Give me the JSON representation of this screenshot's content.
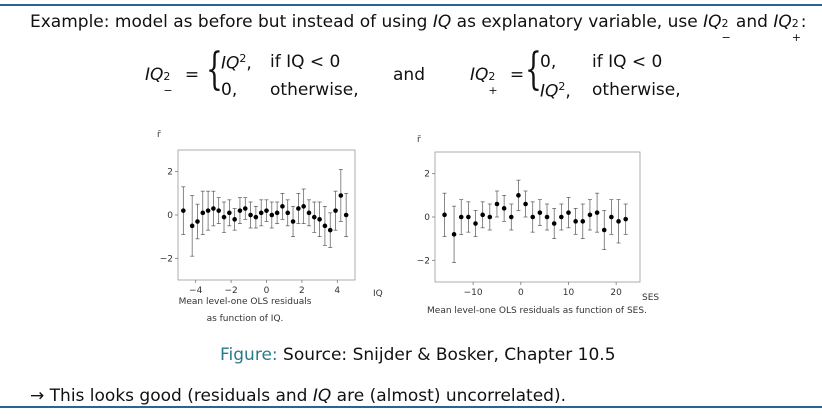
{
  "intro": {
    "prefix": "Example: model as before but instead of using ",
    "var": "IQ",
    "middle": " as explanatory variable, use ",
    "term1": "IQ",
    "sup1": "2",
    "sub1": "−",
    "and_word": " and ",
    "term2": "IQ",
    "sup2": "2",
    "sub2": "+",
    "suffix": ":"
  },
  "equation_left": {
    "lhs": "IQ",
    "lhs_sup": "2",
    "lhs_sub": "−",
    "equals": "=",
    "case1_value": "IQ",
    "case1_sup": "2",
    "case1_comma": ",",
    "case1_cond": "if IQ < 0",
    "case2_value": "0,",
    "case2_cond": "otherwise,"
  },
  "connector": "and",
  "equation_right": {
    "lhs": "IQ",
    "lhs_sup": "2",
    "lhs_sub": "+",
    "equals": "=",
    "case1_value": "0,",
    "case1_cond": "if IQ < 0",
    "case2_value": "IQ",
    "case2_sup": "2",
    "case2_comma": ",",
    "case2_cond": "otherwise,"
  },
  "figure_caption": {
    "label": "Figure:",
    "text": " Source: Snijder & Bosker, Chapter 10.5"
  },
  "conclusion": {
    "arrow": "→",
    "text_before": " This looks good (residuals and ",
    "var": "IQ",
    "text_after": " are (almost) uncorrelated)."
  },
  "chart_data": [
    {
      "type": "scatter",
      "title": "",
      "ylabel": "r̄",
      "xlabel": "IQ",
      "caption_line1": "Mean level-one OLS residuals",
      "caption_line2": "as function of IQ.",
      "xlim": [
        -5,
        5
      ],
      "ylim": [
        -3,
        3
      ],
      "xticks": [
        "−4",
        "−2",
        "0",
        "2",
        "4"
      ],
      "yticks": [
        "2",
        "0",
        "−2"
      ],
      "x": [
        -4.7,
        -4.2,
        -3.9,
        -3.6,
        -3.3,
        -3.0,
        -2.7,
        -2.4,
        -2.1,
        -1.8,
        -1.5,
        -1.2,
        -0.9,
        -0.6,
        -0.3,
        0.0,
        0.3,
        0.6,
        0.9,
        1.2,
        1.5,
        1.8,
        2.1,
        2.4,
        2.7,
        3.0,
        3.3,
        3.6,
        3.9,
        4.2,
        4.5
      ],
      "y": [
        0.2,
        -0.5,
        -0.3,
        0.1,
        0.2,
        0.3,
        0.2,
        -0.1,
        0.1,
        -0.2,
        0.2,
        0.3,
        0.0,
        -0.1,
        0.1,
        0.2,
        0.0,
        0.1,
        0.4,
        0.1,
        -0.3,
        0.3,
        0.4,
        0.1,
        -0.1,
        -0.2,
        -0.5,
        -0.7,
        0.2,
        0.9,
        0.0
      ],
      "err": [
        1.1,
        1.4,
        0.8,
        1.0,
        0.9,
        0.8,
        0.6,
        0.7,
        0.6,
        0.5,
        0.6,
        0.5,
        0.6,
        0.5,
        0.6,
        0.5,
        0.6,
        0.5,
        0.6,
        0.6,
        0.7,
        0.7,
        0.8,
        0.6,
        0.7,
        0.8,
        0.9,
        0.8,
        0.9,
        1.2,
        1.0
      ]
    },
    {
      "type": "scatter",
      "title": "",
      "ylabel": "r̄",
      "xlabel": "SES",
      "caption_line1": "Mean level-one OLS residuals as function of SES.",
      "caption_line2": "",
      "xlim": [
        -18,
        25
      ],
      "ylim": [
        -3,
        3
      ],
      "xticks": [
        "−10",
        "0",
        "10",
        "20"
      ],
      "yticks": [
        "2",
        "0",
        "−2"
      ],
      "x": [
        -16,
        -14,
        -12.5,
        -11,
        -9.5,
        -8,
        -6.5,
        -5,
        -3.5,
        -2,
        -0.5,
        1,
        2.5,
        4,
        5.5,
        7,
        8.5,
        10,
        11.5,
        13,
        14.5,
        16,
        17.5,
        19,
        20.5,
        22
      ],
      "y": [
        0.1,
        -0.8,
        0.0,
        0.0,
        -0.3,
        0.1,
        0.0,
        0.6,
        0.4,
        0.0,
        1.0,
        0.6,
        0.0,
        0.2,
        0.0,
        -0.3,
        0.0,
        0.2,
        -0.2,
        -0.2,
        0.1,
        0.2,
        -0.6,
        0.0,
        -0.2,
        -0.1
      ],
      "err": [
        1.0,
        1.3,
        0.8,
        0.7,
        0.6,
        0.6,
        0.6,
        0.6,
        0.6,
        0.6,
        0.7,
        0.6,
        0.7,
        0.6,
        0.6,
        0.7,
        0.6,
        0.7,
        0.6,
        0.8,
        0.7,
        0.9,
        0.9,
        0.8,
        1.0,
        0.7
      ]
    }
  ]
}
